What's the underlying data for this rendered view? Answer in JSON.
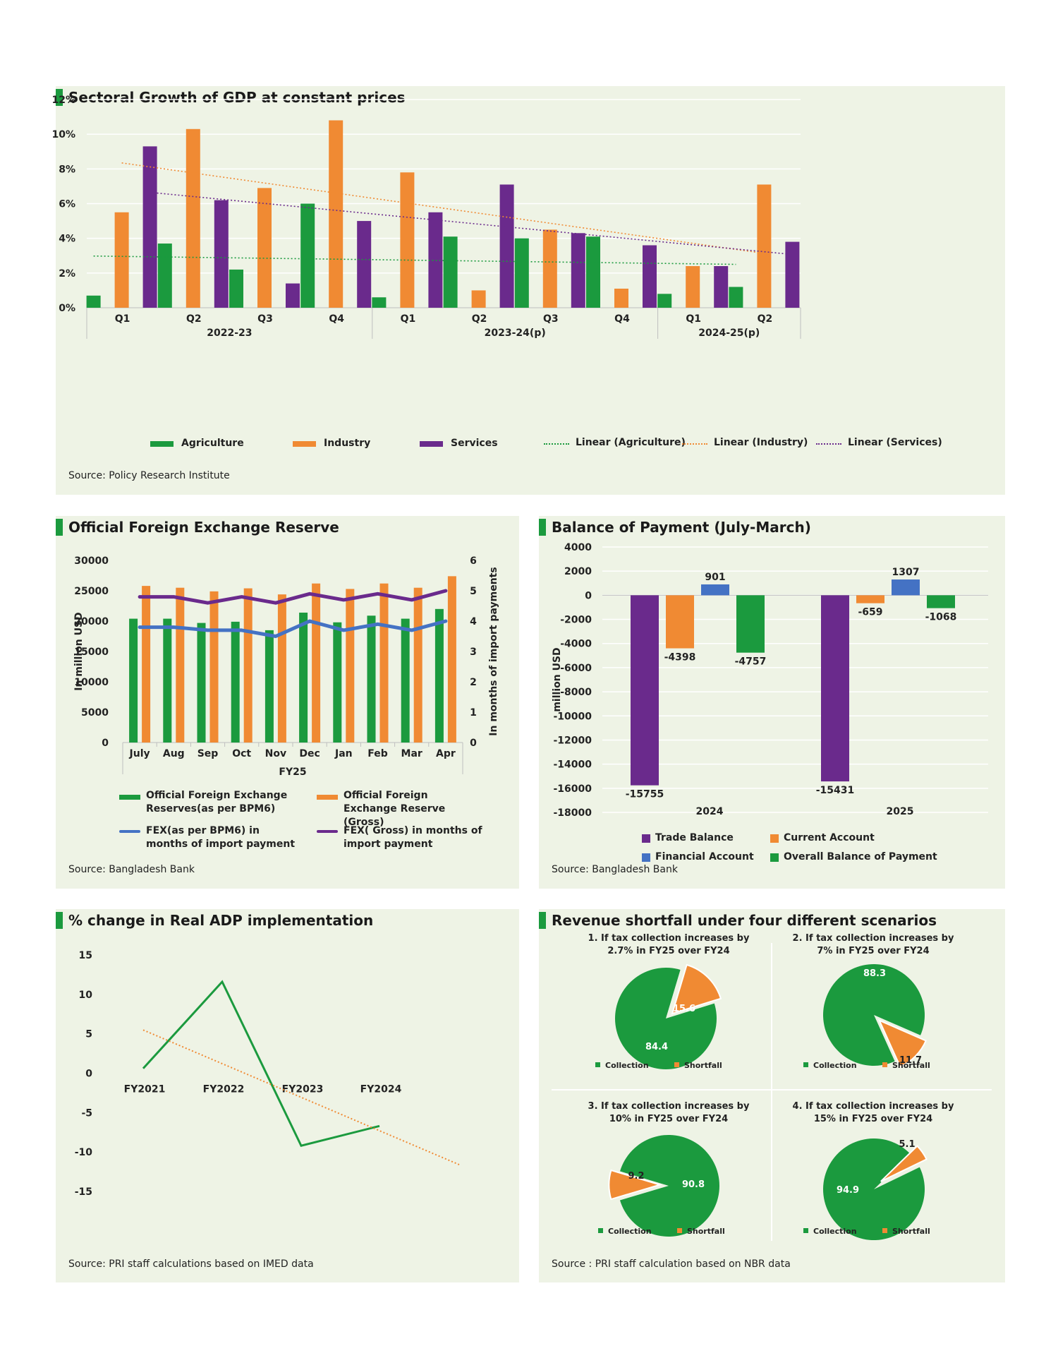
{
  "colors": {
    "agriculture": "#1b9a3e",
    "industry": "#f08a33",
    "services": "#6a2a8c",
    "fex_bpm6": "#4472c4",
    "panel_bg": "#eef3e5",
    "financial": "#4472c4"
  },
  "panel1": {
    "title": "Sectoral Growth of GDP at constant prices",
    "source": "Source: Policy Research Institute",
    "legend": [
      "Agriculture",
      "Industry",
      "Services",
      "Linear (Agriculture)",
      "Linear (Industry)",
      "Linear (Services)"
    ]
  },
  "panel2": {
    "title": "Official Foreign Exchange Reserve",
    "source": "Source: Bangladesh Bank",
    "legend": [
      "Official Foreign Exchange Reserves(as per BPM6)",
      "Official Foreign Exchange Reserve (Gross)",
      "FEX(as per BPM6) in months of import payment",
      "FEX( Gross) in months of import payment"
    ]
  },
  "panel3": {
    "title": "Balance of Payment (July-March)",
    "source": "Source: Bangladesh Bank",
    "legend": [
      "Trade Balance",
      "Current Account",
      "Financial Account",
      "Overall Balance of Payment"
    ]
  },
  "panel4": {
    "title": "% change in Real ADP implementation",
    "source": "Source: PRI staff calculations based on IMED data"
  },
  "panel5": {
    "title": "Revenue shortfall under four different scenarios",
    "source": "Source : PRI staff calculation based on NBR data",
    "scenarios": [
      {
        "line1": "1. If tax collection increases by",
        "line2": "2.7% in FY25 over FY24"
      },
      {
        "line1": "2. If tax collection increases by",
        "line2": "7% in FY25 over FY24"
      },
      {
        "line1": "3. If tax collection increases by",
        "line2": "10% in FY25 over FY24"
      },
      {
        "line1": "4. If tax collection increases by",
        "line2": "15% in FY25 over FY24"
      }
    ],
    "legend": [
      "Collection",
      "Shortfall"
    ]
  },
  "chart_data": [
    {
      "type": "bar",
      "title": "Sectoral Growth of GDP at constant prices",
      "categories": [
        "Q1",
        "Q2",
        "Q3",
        "Q4",
        "Q1",
        "Q2",
        "Q3",
        "Q4",
        "Q1",
        "Q2"
      ],
      "groups": [
        {
          "label": "2022-23",
          "span": 4
        },
        {
          "label": "2023-24(p)",
          "span": 4
        },
        {
          "label": "2024-25(p)",
          "span": 2
        }
      ],
      "series": [
        {
          "name": "Agriculture",
          "values": [
            0.7,
            3.7,
            2.2,
            6.0,
            0.6,
            4.1,
            4.0,
            4.1,
            0.8,
            1.2
          ]
        },
        {
          "name": "Industry",
          "values": [
            5.5,
            10.3,
            6.9,
            10.8,
            7.8,
            1.0,
            4.5,
            1.1,
            2.4,
            7.1
          ]
        },
        {
          "name": "Services",
          "values": [
            9.3,
            6.2,
            1.4,
            5.0,
            5.5,
            7.1,
            4.3,
            3.6,
            2.4,
            3.8
          ]
        }
      ],
      "yticks": [
        "0%",
        "2%",
        "4%",
        "6%",
        "8%",
        "10%",
        "12%"
      ],
      "ylim": [
        0,
        12
      ],
      "trendlines": [
        "Linear (Agriculture)",
        "Linear (Industry)",
        "Linear (Services)"
      ]
    },
    {
      "type": "bar",
      "title": "Official Foreign Exchange Reserve",
      "categories": [
        "July",
        "Aug",
        "Sep",
        "Oct",
        "Nov",
        "Dec",
        "Jan",
        "Feb",
        "Mar",
        "Apr"
      ],
      "xlabel": "FY25",
      "ylabel": "In million USD",
      "y2label": "In months of import payments",
      "yticks": [
        "0",
        "5000",
        "10000",
        "15000",
        "20000",
        "25000",
        "30000"
      ],
      "y2ticks": [
        "0",
        "1",
        "2",
        "3",
        "4",
        "5",
        "6"
      ],
      "ylim": [
        0,
        30000
      ],
      "y2lim": [
        0,
        6
      ],
      "series": [
        {
          "name": "Official Foreign Exchange Reserves(as per BPM6)",
          "type": "bar",
          "values": [
            20400,
            20400,
            19700,
            19900,
            18500,
            21400,
            19800,
            20900,
            20400,
            22000
          ]
        },
        {
          "name": "Official Foreign Exchange Reserve (Gross)",
          "type": "bar",
          "values": [
            25800,
            25500,
            24900,
            25400,
            24400,
            26200,
            25300,
            26200,
            25500,
            27400
          ]
        },
        {
          "name": "FEX(as per BPM6) in months of import payment",
          "type": "line",
          "axis": "y2",
          "values": [
            3.8,
            3.8,
            3.7,
            3.7,
            3.5,
            4.0,
            3.7,
            3.9,
            3.7,
            4.0
          ]
        },
        {
          "name": "FEX( Gross) in months of import payment",
          "type": "line",
          "axis": "y2",
          "values": [
            4.8,
            4.8,
            4.6,
            4.8,
            4.6,
            4.9,
            4.7,
            4.9,
            4.7,
            5.0
          ]
        }
      ]
    },
    {
      "type": "bar",
      "title": "Balance of Payment (July-March)",
      "categories": [
        "2024",
        "2025"
      ],
      "ylabel": "million USD",
      "yticks": [
        "4000",
        "2000",
        "0",
        "-2000",
        "-4000",
        "-6000",
        "-8000",
        "-10000",
        "-12000",
        "-14000",
        "-16000",
        "-18000"
      ],
      "ylim": [
        -18000,
        4000
      ],
      "series": [
        {
          "name": "Trade Balance",
          "values": [
            -15755,
            -15431
          ],
          "labels": [
            "-15755",
            "-15431"
          ]
        },
        {
          "name": "Current Account",
          "values": [
            -4398,
            -659
          ],
          "labels": [
            "-4398",
            "-659"
          ]
        },
        {
          "name": "Financial Account",
          "values": [
            901,
            1307
          ],
          "labels": [
            "901",
            "1307"
          ]
        },
        {
          "name": "Overall Balance of Payment",
          "values": [
            -4757,
            -1068
          ],
          "labels": [
            "-4757",
            "-1068"
          ]
        }
      ]
    },
    {
      "type": "line",
      "title": "% change in Real ADP implementation",
      "categories": [
        "FY2021",
        "FY2022",
        "FY2023",
        "FY2024"
      ],
      "yticks": [
        "15",
        "10",
        "5",
        "0",
        "-5",
        "-10",
        "-15"
      ],
      "ylim": [
        -15,
        15
      ],
      "series": [
        {
          "name": "",
          "values": [
            0.6,
            11.6,
            -9.2,
            -6.7
          ]
        }
      ],
      "trendline": true
    },
    {
      "type": "pie",
      "title": "Revenue shortfall under four different scenarios",
      "pies": [
        {
          "labels": [
            "Collection",
            "Shortfall"
          ],
          "values": [
            84.4,
            15.6
          ],
          "value_labels": [
            "84.4",
            "15.6"
          ]
        },
        {
          "labels": [
            "Collection",
            "Shortfall"
          ],
          "values": [
            88.3,
            11.7
          ],
          "value_labels": [
            "88.3",
            "11.7"
          ]
        },
        {
          "labels": [
            "Collection",
            "Shortfall"
          ],
          "values": [
            90.8,
            9.2
          ],
          "value_labels": [
            "90.8",
            "9.2"
          ]
        },
        {
          "labels": [
            "Collection",
            "Shortfall"
          ],
          "values": [
            94.9,
            5.1
          ],
          "value_labels": [
            "94.9",
            "5.1"
          ]
        }
      ]
    }
  ]
}
